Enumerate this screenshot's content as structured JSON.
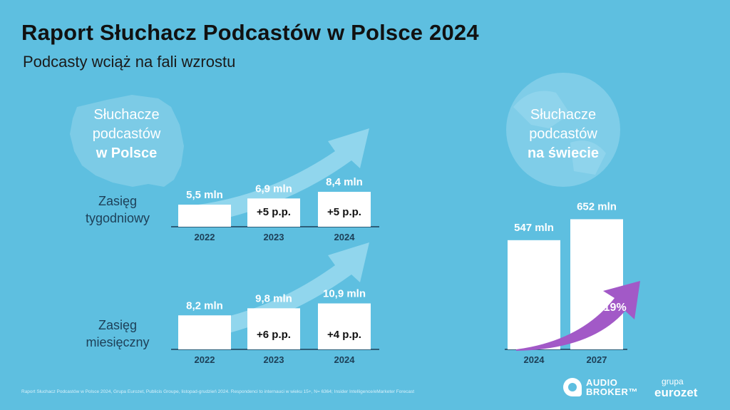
{
  "header": {
    "title": "Raport Słuchacz Podcastów w Polsce 2024",
    "subtitle": "Podcasty wciąż na fali wzrostu"
  },
  "poland_panel": {
    "label_line1": "Słuchacze",
    "label_line2": "podcastów",
    "label_bold": "w Polsce",
    "map_icon": "poland-map-icon"
  },
  "world_panel": {
    "label_line1": "Słuchacze",
    "label_line2": "podcastów",
    "label_bold": "na świecie",
    "globe_icon": "globe-icon"
  },
  "rows": {
    "weekly_line1": "Zasięg",
    "weekly_line2": "tygodniowy",
    "monthly_line1": "Zasięg",
    "monthly_line2": "miesięczny"
  },
  "colors": {
    "background": "#5ebfe0",
    "bar": "#ffffff",
    "arrow": "#9ad9ee",
    "growth_arrow": "#a259c7",
    "title": "#111111"
  },
  "chart_data": [
    {
      "type": "bar",
      "row_label": "Zasięg tygodniowy",
      "categories": [
        "2022",
        "2023",
        "2024"
      ],
      "values": [
        5.5,
        6.9,
        8.4
      ],
      "value_labels": [
        "5,5 mln",
        "6,9 mln",
        "8,4 mln"
      ],
      "changes": [
        "",
        "+5 p.p.",
        "+5 p.p."
      ]
    },
    {
      "type": "bar",
      "row_label": "Zasięg miesięczny",
      "categories": [
        "2022",
        "2023",
        "2024"
      ],
      "values": [
        8.2,
        9.8,
        10.9
      ],
      "value_labels": [
        "8,2 mln",
        "9,8 mln",
        "10,9 mln"
      ],
      "changes": [
        "",
        "+6 p.p.",
        "+4 p.p."
      ]
    },
    {
      "type": "bar",
      "categories": [
        "2024",
        "2027"
      ],
      "values": [
        547,
        652
      ],
      "value_labels": [
        "547 mln",
        "652 mln"
      ],
      "growth_label": "+19%"
    }
  ],
  "footer": {
    "source": "Raport Słuchacz Podcastów w Polsce 2024, Grupa Eurozet, Publicis Groupe, listopad-grudzień 2024. Respondenci to internauci w wieku 15+, N= 6364; Insider Intelligence/eMarketer Forecast",
    "logo_audio_line1": "AUDIO",
    "logo_audio_line2": "BROKER™",
    "logo_eurozet_small": "grupa",
    "logo_eurozet_big": "eurozet"
  }
}
